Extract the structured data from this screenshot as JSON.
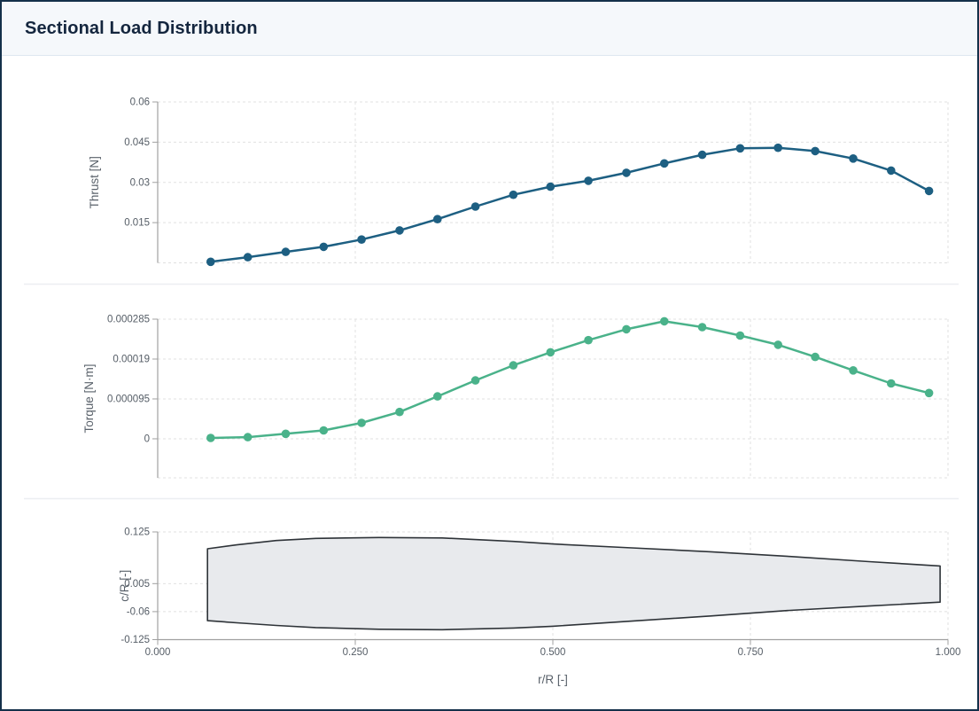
{
  "header": {
    "title": "Sectional Load Distribution"
  },
  "colors": {
    "thrust_series": "#1d5f82",
    "torque_series": "#4ab28a",
    "planform_fill": "#e8eaed",
    "planform_stroke": "#2e3338",
    "grid": "#e0e0e0",
    "axis": "#a0a0a0",
    "tick_text": "#555d66",
    "axis_title_text": "#5a626b",
    "separator": "#eceef1",
    "header_bg": "#f5f8fb",
    "page_border": "#14304a",
    "title_text": "#14263e"
  },
  "chart_data": [
    {
      "type": "line",
      "name": "thrust",
      "title": "",
      "xlabel": "",
      "ylabel": "Thrust [N]",
      "ylim": [
        0,
        0.06
      ],
      "xlim": [
        0,
        1
      ],
      "grid": true,
      "x": [
        0.067,
        0.114,
        0.162,
        0.21,
        0.258,
        0.306,
        0.354,
        0.402,
        0.45,
        0.497,
        0.545,
        0.593,
        0.641,
        0.689,
        0.737,
        0.785,
        0.832,
        0.88,
        0.928,
        0.976
      ],
      "y": [
        0.0004,
        0.0021,
        0.0041,
        0.006,
        0.0087,
        0.0121,
        0.0163,
        0.021,
        0.0254,
        0.0284,
        0.0306,
        0.0336,
        0.0371,
        0.0403,
        0.0427,
        0.0429,
        0.0417,
        0.0389,
        0.0344,
        0.0268
      ],
      "yticks": [
        {
          "v": 0.06,
          "label": "0.06"
        },
        {
          "v": 0.045,
          "label": "0.045"
        },
        {
          "v": 0.03,
          "label": "0.03"
        },
        {
          "v": 0.015,
          "label": "0.015"
        },
        {
          "v": 0,
          "label": ""
        }
      ]
    },
    {
      "type": "line",
      "name": "torque",
      "title": "",
      "xlabel": "",
      "ylabel": "Torque [N·m]",
      "ylim": [
        -9.3e-05,
        0.000285
      ],
      "xlim": [
        0,
        1
      ],
      "grid": true,
      "x": [
        0.067,
        0.114,
        0.162,
        0.21,
        0.258,
        0.306,
        0.354,
        0.402,
        0.45,
        0.497,
        0.545,
        0.593,
        0.641,
        0.689,
        0.737,
        0.785,
        0.832,
        0.88,
        0.928,
        0.976
      ],
      "y": [
        2e-06,
        4e-06,
        1.2e-05,
        2e-05,
        3.8e-05,
        6.4e-05,
        0.000101,
        0.000139,
        0.000175,
        0.000206,
        0.000235,
        0.000261,
        0.00028,
        0.000266,
        0.000246,
        0.000224,
        0.000195,
        0.000163,
        0.000132,
        0.000109
      ],
      "yticks": [
        {
          "v": 0.000285,
          "label": "0.000285"
        },
        {
          "v": 0.00019,
          "label": "0.00019"
        },
        {
          "v": 9.5e-05,
          "label": "0.000095"
        },
        {
          "v": 0,
          "label": "0"
        },
        {
          "v": -9.3e-05,
          "label": ""
        }
      ]
    },
    {
      "type": "area",
      "name": "planform",
      "title": "",
      "xlabel": "r/R [-]",
      "ylabel": "c/R [-]",
      "ylim": [
        -0.125,
        0.125
      ],
      "xlim": [
        0,
        1
      ],
      "grid": true,
      "polygon": [
        [
          0.063,
          0.086
        ],
        [
          0.1,
          0.095
        ],
        [
          0.15,
          0.105
        ],
        [
          0.2,
          0.11
        ],
        [
          0.28,
          0.112
        ],
        [
          0.36,
          0.111
        ],
        [
          0.45,
          0.103
        ],
        [
          0.5,
          0.097
        ],
        [
          0.6,
          0.088
        ],
        [
          0.7,
          0.079
        ],
        [
          0.8,
          0.068
        ],
        [
          0.9,
          0.056
        ],
        [
          0.99,
          0.046
        ],
        [
          0.99,
          -0.038
        ],
        [
          0.9,
          -0.047
        ],
        [
          0.8,
          -0.057
        ],
        [
          0.7,
          -0.07
        ],
        [
          0.6,
          -0.082
        ],
        [
          0.5,
          -0.094
        ],
        [
          0.45,
          -0.098
        ],
        [
          0.36,
          -0.102
        ],
        [
          0.28,
          -0.101
        ],
        [
          0.2,
          -0.097
        ],
        [
          0.15,
          -0.092
        ],
        [
          0.1,
          -0.086
        ],
        [
          0.063,
          -0.081
        ]
      ],
      "yticks": [
        {
          "v": 0.125,
          "label": "0.125"
        },
        {
          "v": 0.005,
          "label": "0.005"
        },
        {
          "v": -0.06,
          "label": "-0.06"
        },
        {
          "v": -0.125,
          "label": "-0.125"
        }
      ],
      "xticks": [
        {
          "v": 0,
          "label": "0.000"
        },
        {
          "v": 0.25,
          "label": "0.250"
        },
        {
          "v": 0.5,
          "label": "0.500"
        },
        {
          "v": 0.75,
          "label": "0.750"
        },
        {
          "v": 1,
          "label": "1.000"
        }
      ]
    }
  ]
}
